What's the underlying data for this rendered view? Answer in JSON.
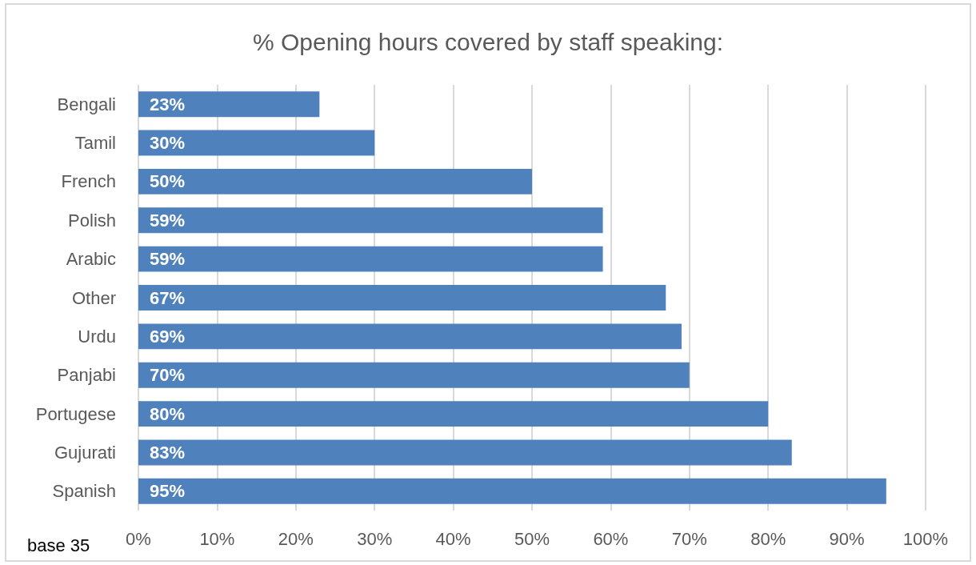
{
  "chart_data": {
    "type": "bar",
    "orientation": "horizontal",
    "title": "% Opening hours covered by staff speaking:",
    "categories": [
      "Bengali",
      "Tamil",
      "French",
      "Polish",
      "Arabic",
      "Other",
      "Urdu",
      "Panjabi",
      "Portugese",
      "Gujurati",
      "Spanish"
    ],
    "values": [
      23,
      30,
      50,
      59,
      59,
      67,
      69,
      70,
      80,
      83,
      95
    ],
    "value_labels": [
      "23%",
      "30%",
      "50%",
      "59%",
      "59%",
      "67%",
      "69%",
      "70%",
      "80%",
      "83%",
      "95%"
    ],
    "color": "#4f81bd",
    "xlim": [
      0,
      100
    ],
    "xticks": [
      {
        "value": 0,
        "label": "0%"
      },
      {
        "value": 10,
        "label": "10%"
      },
      {
        "value": 20,
        "label": "20%"
      },
      {
        "value": 30,
        "label": "30%"
      },
      {
        "value": 40,
        "label": "40%"
      },
      {
        "value": 50,
        "label": "50%"
      },
      {
        "value": 60,
        "label": "60%"
      },
      {
        "value": 70,
        "label": "70%"
      },
      {
        "value": 80,
        "label": "80%"
      },
      {
        "value": 90,
        "label": "90%"
      },
      {
        "value": 100,
        "label": "100%"
      }
    ],
    "grid": "x",
    "annotations": [
      "base 35"
    ]
  }
}
